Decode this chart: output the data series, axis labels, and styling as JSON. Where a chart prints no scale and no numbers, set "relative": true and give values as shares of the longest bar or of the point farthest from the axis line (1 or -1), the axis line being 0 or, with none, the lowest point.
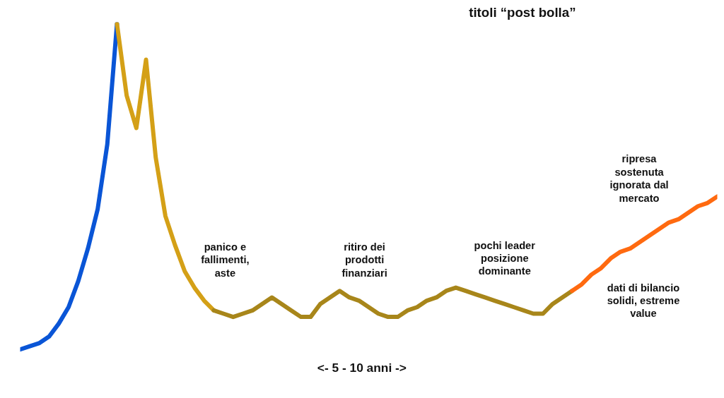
{
  "chart_data": {
    "type": "line",
    "title": "titoli “post bolla”",
    "xlabel": "<-   5 - 10 anni   ->",
    "relative": true,
    "grid": false,
    "marker": "none",
    "line_style": "solid",
    "categories": [
      null,
      null,
      null,
      null,
      null,
      null,
      null,
      null,
      null,
      null,
      null,
      null,
      null,
      null,
      null,
      null,
      null,
      null,
      null,
      null,
      null,
      null,
      null,
      null,
      null,
      null,
      null,
      null,
      null,
      null,
      null,
      null,
      null,
      null,
      null,
      null,
      null,
      null,
      null,
      null,
      null,
      null,
      null,
      null,
      null,
      null,
      null,
      null,
      null,
      null,
      null,
      null,
      null,
      null,
      null,
      null,
      null,
      null,
      null,
      null,
      null,
      null,
      null,
      null,
      null,
      null,
      null,
      null,
      null,
      null,
      null,
      null,
      null
    ],
    "series": [
      {
        "color": "#0a55d6",
        "values": [
          0,
          0.01,
          0.02,
          0.04,
          0.08,
          0.13,
          0.21,
          0.31,
          0.43,
          0.63,
          1.0,
          null,
          null,
          null,
          null,
          null,
          null,
          null,
          null,
          null,
          null,
          null,
          null,
          null,
          null,
          null,
          null,
          null,
          null,
          null,
          null,
          null,
          null,
          null,
          null,
          null,
          null,
          null,
          null,
          null,
          null,
          null,
          null,
          null,
          null,
          null,
          null,
          null,
          null,
          null,
          null,
          null,
          null,
          null,
          null,
          null,
          null,
          null,
          null,
          null,
          null,
          null,
          null,
          null,
          null,
          null,
          null,
          null,
          null,
          null,
          null,
          null,
          null
        ]
      },
      {
        "color": "#d4a017",
        "values": [
          null,
          null,
          null,
          null,
          null,
          null,
          null,
          null,
          null,
          null,
          1.0,
          0.78,
          0.68,
          0.89,
          0.59,
          0.41,
          0.32,
          0.24,
          0.19,
          0.15,
          0.12,
          null,
          null,
          null,
          null,
          null,
          null,
          null,
          null,
          null,
          null,
          null,
          null,
          null,
          null,
          null,
          null,
          null,
          null,
          null,
          null,
          null,
          null,
          null,
          null,
          null,
          null,
          null,
          null,
          null,
          null,
          null,
          null,
          null,
          null,
          null,
          null,
          null,
          null,
          null,
          null,
          null,
          null,
          null,
          null,
          null,
          null,
          null,
          null,
          null,
          null,
          null,
          null
        ]
      },
      {
        "color": "#a8861a",
        "values": [
          null,
          null,
          null,
          null,
          null,
          null,
          null,
          null,
          null,
          null,
          null,
          null,
          null,
          null,
          null,
          null,
          null,
          null,
          null,
          null,
          0.12,
          0.11,
          0.1,
          0.11,
          0.12,
          0.14,
          0.16,
          0.14,
          0.12,
          0.1,
          0.1,
          0.14,
          0.16,
          0.18,
          0.16,
          0.15,
          0.13,
          0.11,
          0.1,
          0.1,
          0.12,
          0.13,
          0.15,
          0.16,
          0.18,
          0.19,
          0.18,
          0.17,
          0.16,
          0.15,
          0.14,
          0.13,
          0.12,
          0.11,
          0.11,
          0.14,
          0.16,
          0.18,
          null,
          null,
          null,
          null,
          null,
          null,
          null,
          null,
          null,
          null,
          null,
          null,
          null,
          null,
          null
        ]
      },
      {
        "color": "#ff6a10",
        "values": [
          null,
          null,
          null,
          null,
          null,
          null,
          null,
          null,
          null,
          null,
          null,
          null,
          null,
          null,
          null,
          null,
          null,
          null,
          null,
          null,
          null,
          null,
          null,
          null,
          null,
          null,
          null,
          null,
          null,
          null,
          null,
          null,
          null,
          null,
          null,
          null,
          null,
          null,
          null,
          null,
          null,
          null,
          null,
          null,
          null,
          null,
          null,
          null,
          null,
          null,
          null,
          null,
          null,
          null,
          null,
          null,
          null,
          0.18,
          0.2,
          0.23,
          0.25,
          0.28,
          0.3,
          0.31,
          0.33,
          0.35,
          0.37,
          0.39,
          0.4,
          0.42,
          0.44,
          0.45,
          0.47
        ]
      }
    ],
    "annotations": [
      "panico e\nfallimenti,\naste",
      "ritiro dei\nprodotti\nfinanziari",
      "pochi leader\nposizione\ndominante",
      "ripresa\nsostenuta\nignorata dal\nmercato",
      "dati di bilancio\nsolidi, estreme\nvalue"
    ]
  }
}
